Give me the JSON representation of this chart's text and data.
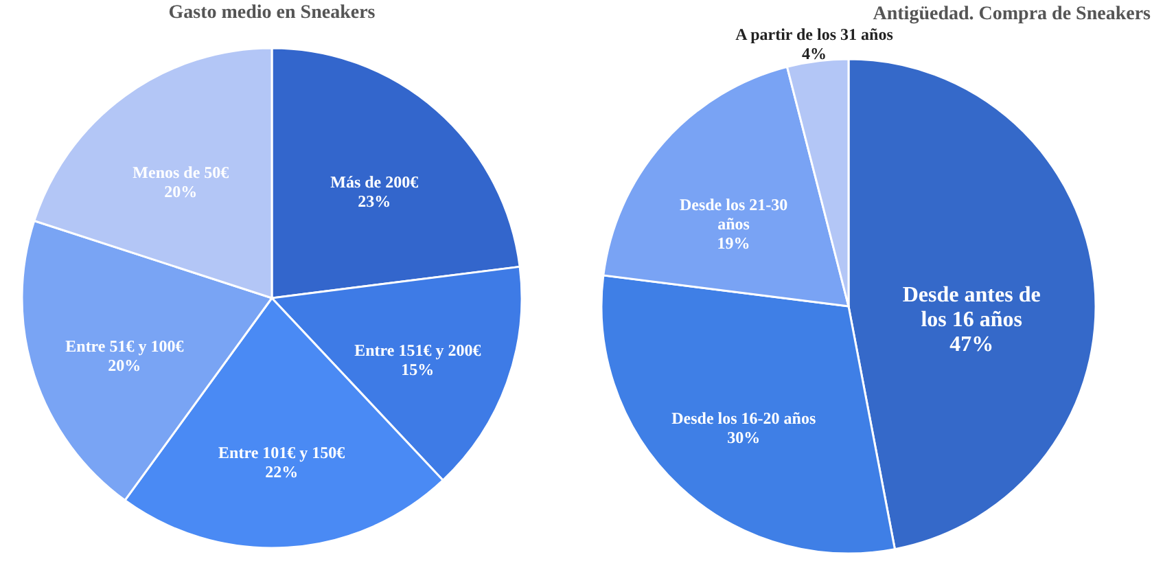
{
  "chart_data": [
    {
      "type": "pie",
      "title": "Gasto medio en Sneakers",
      "categories": [
        "Más de 200€",
        "Entre 151€ y 200€",
        "Entre 101€ y 150€",
        "Entre 51€ y 100€",
        "Menos de 50€"
      ],
      "values": [
        23,
        15,
        22,
        20,
        20
      ],
      "value_labels": [
        "23%",
        "15%",
        "22%",
        "20%",
        "20%"
      ],
      "colors": [
        "#3366cc",
        "#3e7be6",
        "#4a8af4",
        "#79a4f4",
        "#b3c6f6"
      ]
    },
    {
      "type": "pie",
      "title": "Antigüedad. Compra de Sneakers",
      "categories": [
        "Desde antes de los 16 años",
        "Desde los 16-20 años",
        "Desde los 21-30 años",
        "A partir de los 31 años"
      ],
      "values": [
        47,
        30,
        19,
        4
      ],
      "value_labels": [
        "47%",
        "30%",
        "19%",
        "4%"
      ],
      "colors": [
        "#3569c9",
        "#3f7fe6",
        "#79a3f4",
        "#b3c6f6"
      ]
    }
  ]
}
